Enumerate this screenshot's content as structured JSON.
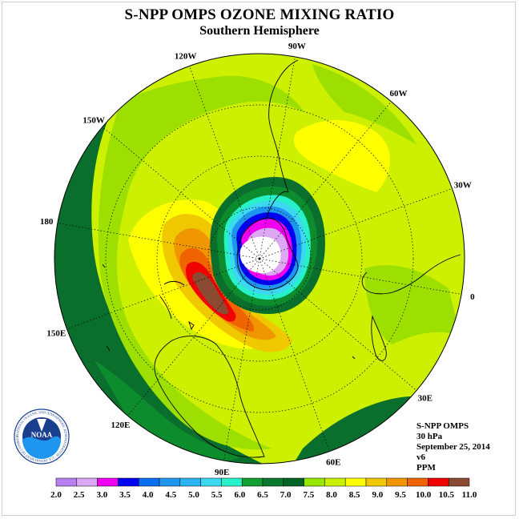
{
  "title": "S-NPP OMPS OZONE MIXING RATIO",
  "subtitle": "Southern Hemisphere",
  "lon_labels": [
    "90W",
    "60W",
    "30W",
    "0",
    "30E",
    "60E",
    "90E",
    "120E",
    "150E",
    "180",
    "150W",
    "120W"
  ],
  "info": {
    "instrument": "S-NPP OMPS",
    "level": "30 hPa",
    "date": "September 25, 2014",
    "version": "v6",
    "units": "PPM"
  },
  "logo": {
    "text": "NOAA",
    "ring_text": "NATIONAL OCEANIC AND ATMOSPHERIC ADMINISTRATION · U.S. DEPARTMENT OF COMMERCE"
  },
  "colorbar": {
    "labels": [
      "2.0",
      "2.5",
      "3.0",
      "3.5",
      "4.0",
      "4.5",
      "5.0",
      "5.5",
      "6.0",
      "6.5",
      "7.0",
      "7.5",
      "8.0",
      "8.5",
      "9.0",
      "9.5",
      "10.0",
      "10.5",
      "11.0"
    ],
    "colors": [
      "#b77ff0",
      "#dca8f4",
      "#f000f0",
      "#0000f0",
      "#0a6ef0",
      "#1e96f0",
      "#28b4f0",
      "#3cd7f0",
      "#28f0c8",
      "#12a032",
      "#0a782d",
      "#006424",
      "#96e600",
      "#c8f000",
      "#ffff00",
      "#f0c800",
      "#f09600",
      "#f06400",
      "#f00000",
      "#8b4a32"
    ]
  },
  "map_colors": {
    "ocean_outer": "#0a6e2d",
    "band_green": "#0c8c2c",
    "light_green": "#9de000",
    "yellow_green": "#ccf000",
    "yellow": "#ffff00",
    "gold": "#f0c800",
    "orange": "#f09600",
    "dark_orange": "#f06400",
    "red": "#f00000",
    "brown": "#8b4a32",
    "hole_white": "#ffffff",
    "hole_lilac": "#dca8f4",
    "hole_magenta": "#f000f0",
    "hole_blue": "#0000f0",
    "hole_lightblue": "#1e96f0",
    "hole_cyan": "#3cd7f0",
    "hole_teal": "#28f0c8"
  }
}
